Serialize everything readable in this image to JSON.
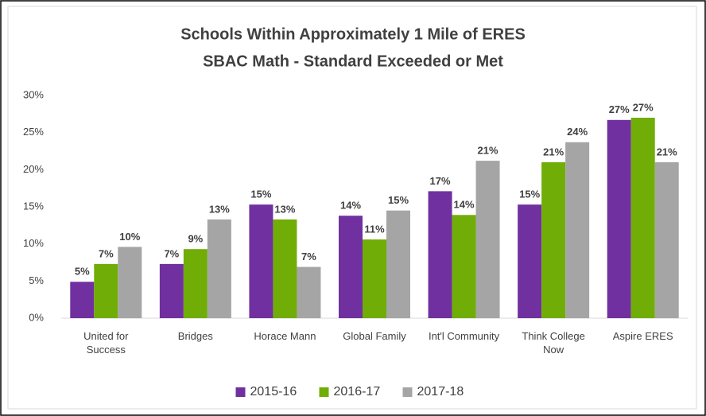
{
  "chart_data": {
    "type": "bar",
    "title": "Schools Within Approximately 1 Mile of ERES",
    "subtitle": "SBAC Math - Standard Exceeded or Met",
    "categories": [
      "United for Success",
      "Bridges",
      "Horace Mann",
      "Global Family",
      "Int'l Community",
      "Think College Now",
      "Aspire ERES"
    ],
    "series": [
      {
        "name": "2015-16",
        "color": "#7030a0",
        "values": [
          4.9,
          7.3,
          15.3,
          13.8,
          17.1,
          15.3,
          26.7
        ],
        "value_labels": [
          "5%",
          "7%",
          "15%",
          "14%",
          "17%",
          "15%",
          "27%"
        ]
      },
      {
        "name": "2016-17",
        "color": "#70ad07",
        "values": [
          7.3,
          9.3,
          13.3,
          10.6,
          13.9,
          21.0,
          27.0
        ],
        "value_labels": [
          "7%",
          "9%",
          "13%",
          "11%",
          "14%",
          "21%",
          "27%"
        ]
      },
      {
        "name": "2017-18",
        "color": "#a5a5a5",
        "values": [
          9.6,
          13.3,
          6.9,
          14.5,
          21.2,
          23.7,
          21.0
        ],
        "value_labels": [
          "10%",
          "13%",
          "7%",
          "15%",
          "21%",
          "24%",
          "21%"
        ]
      }
    ],
    "ylim": [
      0,
      30
    ],
    "yticks": [
      {
        "value": 0,
        "label": "0%"
      },
      {
        "value": 5,
        "label": "5%"
      },
      {
        "value": 10,
        "label": "10%"
      },
      {
        "value": 15,
        "label": "15%"
      },
      {
        "value": 20,
        "label": "20%"
      },
      {
        "value": 25,
        "label": "25%"
      },
      {
        "value": 30,
        "label": "30%"
      }
    ],
    "grid": false,
    "legend": "bottom"
  }
}
